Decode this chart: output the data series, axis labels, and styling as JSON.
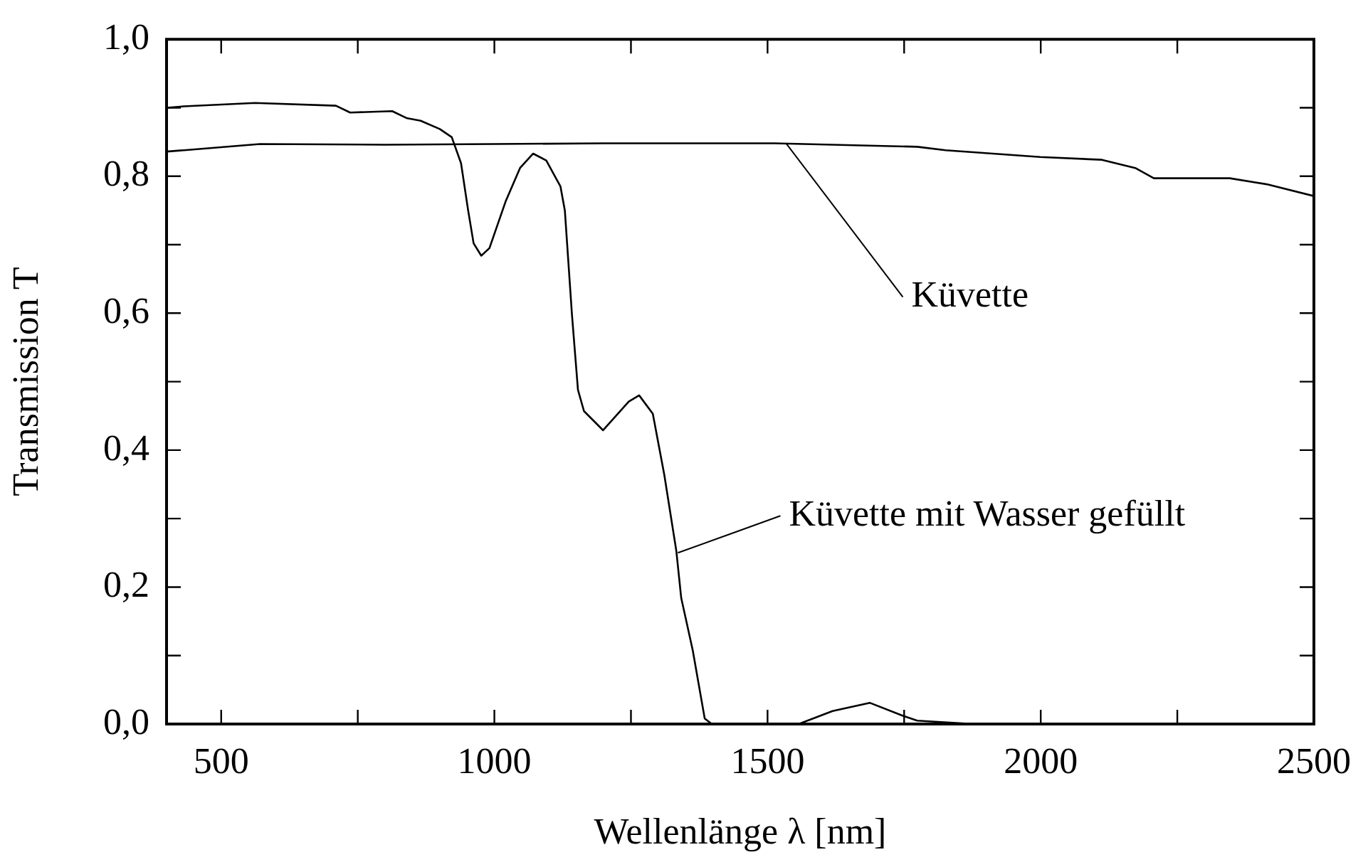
{
  "chart_data": {
    "type": "line",
    "xlabel": "Wellenlänge λ [nm]",
    "ylabel": "Transmission T",
    "xlim": [
      400,
      2500
    ],
    "ylim": [
      0,
      1
    ],
    "xticks": [
      500,
      {
        "value": 750,
        "label": null
      },
      1000,
      {
        "value": 1250,
        "label": null
      },
      1500,
      {
        "value": 1750,
        "label": null
      },
      2000,
      {
        "value": 2250,
        "label": null
      },
      2500
    ],
    "yticks": [
      {
        "value": 0,
        "label": "0,0"
      },
      {
        "value": 0.1,
        "label": null
      },
      {
        "value": 0.2,
        "label": "0,2"
      },
      {
        "value": 0.3,
        "label": null
      },
      {
        "value": 0.4,
        "label": "0,4"
      },
      {
        "value": 0.5,
        "label": null
      },
      {
        "value": 0.6,
        "label": "0,6"
      },
      {
        "value": 0.7,
        "label": null
      },
      {
        "value": 0.8,
        "label": "0,8"
      },
      {
        "value": 0.9,
        "label": null
      },
      {
        "value": 1,
        "label": "1,0"
      }
    ],
    "legend": false,
    "marker": "none",
    "line_style": "solid",
    "series": [
      {
        "color": "#000000",
        "x": [
          400,
          432,
          571,
          800,
          1000,
          1200,
          1400,
          1513,
          1774,
          1826,
          1999,
          2112,
          2173,
          2207,
          2346,
          2415,
          2500
        ],
        "values": [
          0.836,
          0.838,
          0.847,
          0.846,
          0.847,
          0.848,
          0.848,
          0.848,
          0.843,
          0.838,
          0.828,
          0.824,
          0.812,
          0.797,
          0.797,
          0.788,
          0.771
        ]
      },
      {
        "color": "#000000",
        "x": [
          400,
          432,
          562,
          710,
          736,
          813,
          839,
          865,
          900,
          922,
          939,
          952,
          962,
          976,
          991,
          1021,
          1047,
          1071,
          1095,
          1121,
          1129,
          1142,
          1153,
          1164,
          1199,
          1246,
          1265,
          1290,
          1311,
          1333,
          1342,
          1363,
          1385,
          1398,
          1557,
          1619,
          1687,
          1748,
          1774,
          1878,
          2500
        ],
        "values": [
          0.9,
          0.902,
          0.907,
          0.903,
          0.893,
          0.895,
          0.885,
          0.881,
          0.869,
          0.857,
          0.819,
          0.75,
          0.702,
          0.684,
          0.695,
          0.764,
          0.812,
          0.833,
          0.823,
          0.785,
          0.75,
          0.598,
          0.488,
          0.457,
          0.429,
          0.471,
          0.48,
          0.453,
          0.364,
          0.253,
          0.184,
          0.108,
          0.008,
          0,
          0,
          0.019,
          0.031,
          0.012,
          0.005,
          0,
          0
        ]
      }
    ],
    "annotations": [
      {
        "text": "Küvette",
        "x": 1534,
        "y": 0.848
      },
      {
        "text": "Küvette mit Wasser gefüllt",
        "x": 1336,
        "y": 0.25
      }
    ]
  }
}
